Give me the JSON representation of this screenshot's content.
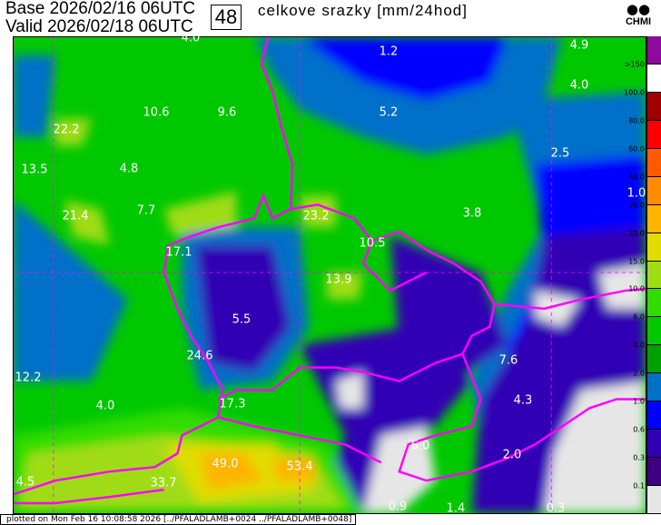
{
  "header": {
    "base": "Base 2026/02/16 06UTC",
    "valid": "Valid 2026/02/18 06UTC",
    "forecast_hour": "48",
    "title": "celkove srazky [mm/24hod]",
    "logo_text": "CHMI"
  },
  "colorbar": {
    "levels": [
      {
        "label": ">150",
        "color": "#8c0a9c"
      },
      {
        "label": "100.0",
        "color": "#ffffff"
      },
      {
        "label": "80.0",
        "color": "#a00000"
      },
      {
        "label": "60.0",
        "color": "#ff0000"
      },
      {
        "label": "40.0",
        "color": "#ff5a00"
      },
      {
        "label": "30.0",
        "color": "#ff8c00"
      },
      {
        "label": "20.0",
        "color": "#ffb400"
      },
      {
        "label": "15.0",
        "color": "#e0dc00"
      },
      {
        "label": "10.0",
        "color": "#a0dc14"
      },
      {
        "label": "6.0",
        "color": "#32dc00"
      },
      {
        "label": "4.0",
        "color": "#00c800"
      },
      {
        "label": "2.0",
        "color": "#00a000"
      },
      {
        "label": "1.0",
        "color": "#0070c8"
      },
      {
        "label": "0.6",
        "color": "#0000ff"
      },
      {
        "label": "0.3",
        "color": "#3200b4"
      },
      {
        "label": "0.1",
        "color": "#3c0080"
      },
      {
        "label": "",
        "color": "#e6e6e6"
      }
    ]
  },
  "map_labels": [
    {
      "v": "4.0",
      "lon": 210,
      "lat": 42
    },
    {
      "v": "1.2",
      "lon": 428,
      "lat": 57
    },
    {
      "v": "4.9",
      "lon": 638,
      "lat": 50
    },
    {
      "v": "4.0",
      "lon": 638,
      "lat": 94
    },
    {
      "v": "10.6",
      "lon": 172,
      "lat": 124
    },
    {
      "v": "9.6",
      "lon": 250,
      "lat": 124
    },
    {
      "v": "5.2",
      "lon": 428,
      "lat": 124
    },
    {
      "v": "22.2",
      "lon": 73,
      "lat": 143
    },
    {
      "v": "2.5",
      "lon": 617,
      "lat": 169
    },
    {
      "v": "13.5",
      "lon": 38,
      "lat": 187
    },
    {
      "v": "4.8",
      "lon": 142,
      "lat": 186
    },
    {
      "v": "1.0",
      "lon": 701,
      "lat": 213
    },
    {
      "v": "7.7",
      "lon": 161,
      "lat": 232
    },
    {
      "v": "21.4",
      "lon": 83,
      "lat": 238
    },
    {
      "v": "23.2",
      "lon": 348,
      "lat": 238
    },
    {
      "v": "3.8",
      "lon": 520,
      "lat": 235
    },
    {
      "v": "10.5",
      "lon": 410,
      "lat": 268
    },
    {
      "v": "17.1",
      "lon": 197,
      "lat": 278
    },
    {
      "v": "13.9",
      "lon": 373,
      "lat": 308
    },
    {
      "v": "5.5",
      "lon": 266,
      "lat": 352
    },
    {
      "v": "7.6",
      "lon": 560,
      "lat": 397
    },
    {
      "v": "24.6",
      "lon": 220,
      "lat": 392
    },
    {
      "v": "12.2",
      "lon": 31,
      "lat": 416
    },
    {
      "v": "4.0",
      "lon": 116,
      "lat": 447
    },
    {
      "v": "17.3",
      "lon": 256,
      "lat": 445
    },
    {
      "v": "4.3",
      "lon": 576,
      "lat": 441
    },
    {
      "v": "6.0",
      "lon": 463,
      "lat": 491
    },
    {
      "v": "2.0",
      "lon": 564,
      "lat": 501
    },
    {
      "v": "49.0",
      "lon": 248,
      "lat": 511
    },
    {
      "v": "53.4",
      "lon": 330,
      "lat": 514
    },
    {
      "v": "4.5",
      "lon": 28,
      "lat": 531
    },
    {
      "v": "33.7",
      "lon": 180,
      "lat": 532
    },
    {
      "v": "0.9",
      "lon": 438,
      "lat": 558
    },
    {
      "v": "1.4",
      "lon": 502,
      "lat": 560
    },
    {
      "v": "0.3",
      "lon": 612,
      "lat": 560
    }
  ],
  "colors": {
    "border": "#ff00ff",
    "label": "#ffffff"
  },
  "footer": "plotted on Mon Feb 16 10:08:58 2026 [../PFALADLAMB+0024 ../PFALADLAMB+0048]"
}
